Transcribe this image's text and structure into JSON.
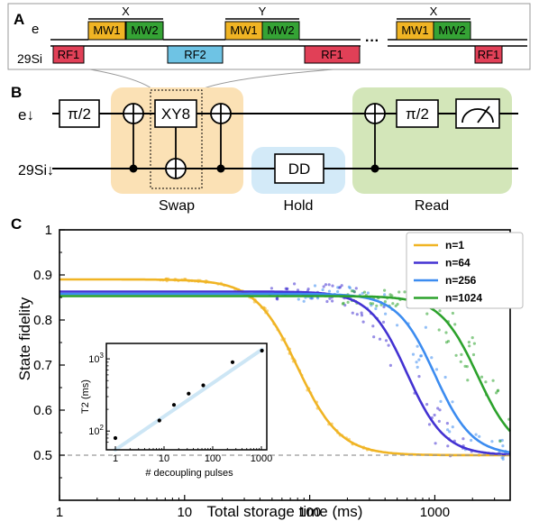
{
  "panel_a": {
    "label": "A",
    "e_label": "e",
    "si_label": "29Si",
    "ellipsis": "···",
    "block1": {
      "header": "X",
      "mw1": "MW1",
      "mw2": "MW2"
    },
    "block2": {
      "header": "Y",
      "mw1": "MW1",
      "mw2": "MW2"
    },
    "block3": {
      "header": "X",
      "mw1": "MW1",
      "mw2": "MW2"
    },
    "rf": [
      "RF1",
      "RF2",
      "RF1",
      "RF1"
    ]
  },
  "panel_b": {
    "label": "B",
    "e_label": "e↓",
    "si_label": "29Si↓",
    "gates": {
      "pi2_a": "π/2",
      "xy8": "XY8",
      "dd": "DD",
      "pi2_b": "π/2"
    },
    "stages": {
      "swap": "Swap",
      "hold": "Hold",
      "read": "Read"
    }
  },
  "panel_c": {
    "label": "C",
    "inset_xlabel": "# decoupling pulses",
    "inset_ylabel": "T2 (ms)"
  },
  "colors": {
    "n1": "#f0b424",
    "n64": "#4332d2",
    "n256": "#3c8cf0",
    "n1024": "#2ca22c",
    "mw1": "#f0b424",
    "mw2": "#35a335",
    "rf1": "#e14057",
    "rf2": "#6ec3e4",
    "swap_bg": "#fbe1b5",
    "hold_bg": "#d3eaf8",
    "read_bg": "#d3e6b9",
    "inset_line": "#cde6f5"
  },
  "chart_data": [
    {
      "type": "scatter",
      "title": "",
      "xlabel": "Total storage time (ms)",
      "ylabel": "State fidelity",
      "xscale": "log",
      "xlim": [
        1,
        4000
      ],
      "ylim": [
        0.4,
        1.0
      ],
      "xticks": [
        "1",
        "10",
        "100",
        "1000"
      ],
      "yticks": [
        "0.5",
        "0.6",
        "0.7",
        "0.8",
        "0.9",
        "1"
      ],
      "legend_position": "top-right",
      "reference_line": {
        "y": 0.5,
        "style": "dashed"
      },
      "series": [
        {
          "name": "n=1",
          "fit_top": 0.89,
          "fit_t50": 80,
          "fit_width": 0.17
        },
        {
          "name": "n=64",
          "fit_top": 0.863,
          "fit_t50": 600,
          "fit_width": 0.15
        },
        {
          "name": "n=256",
          "fit_top": 0.858,
          "fit_t50": 1000,
          "fit_width": 0.15
        },
        {
          "name": "n=1024",
          "fit_top": 0.853,
          "fit_t50": 2200,
          "fit_width": 0.15
        }
      ]
    },
    {
      "type": "scatter",
      "title": "",
      "xlabel": "# decoupling pulses",
      "ylabel": "T2 (ms)",
      "xscale": "log",
      "yscale": "log",
      "xlim": [
        1,
        1000
      ],
      "ylim": [
        60,
        1500
      ],
      "xticks": [
        "1",
        "10",
        "100",
        "1000"
      ],
      "yticks": [
        "10^2",
        "10^3"
      ],
      "x": [
        1,
        8,
        16,
        32,
        64,
        256,
        1024
      ],
      "values": [
        80,
        140,
        230,
        330,
        430,
        900,
        1300
      ]
    }
  ]
}
